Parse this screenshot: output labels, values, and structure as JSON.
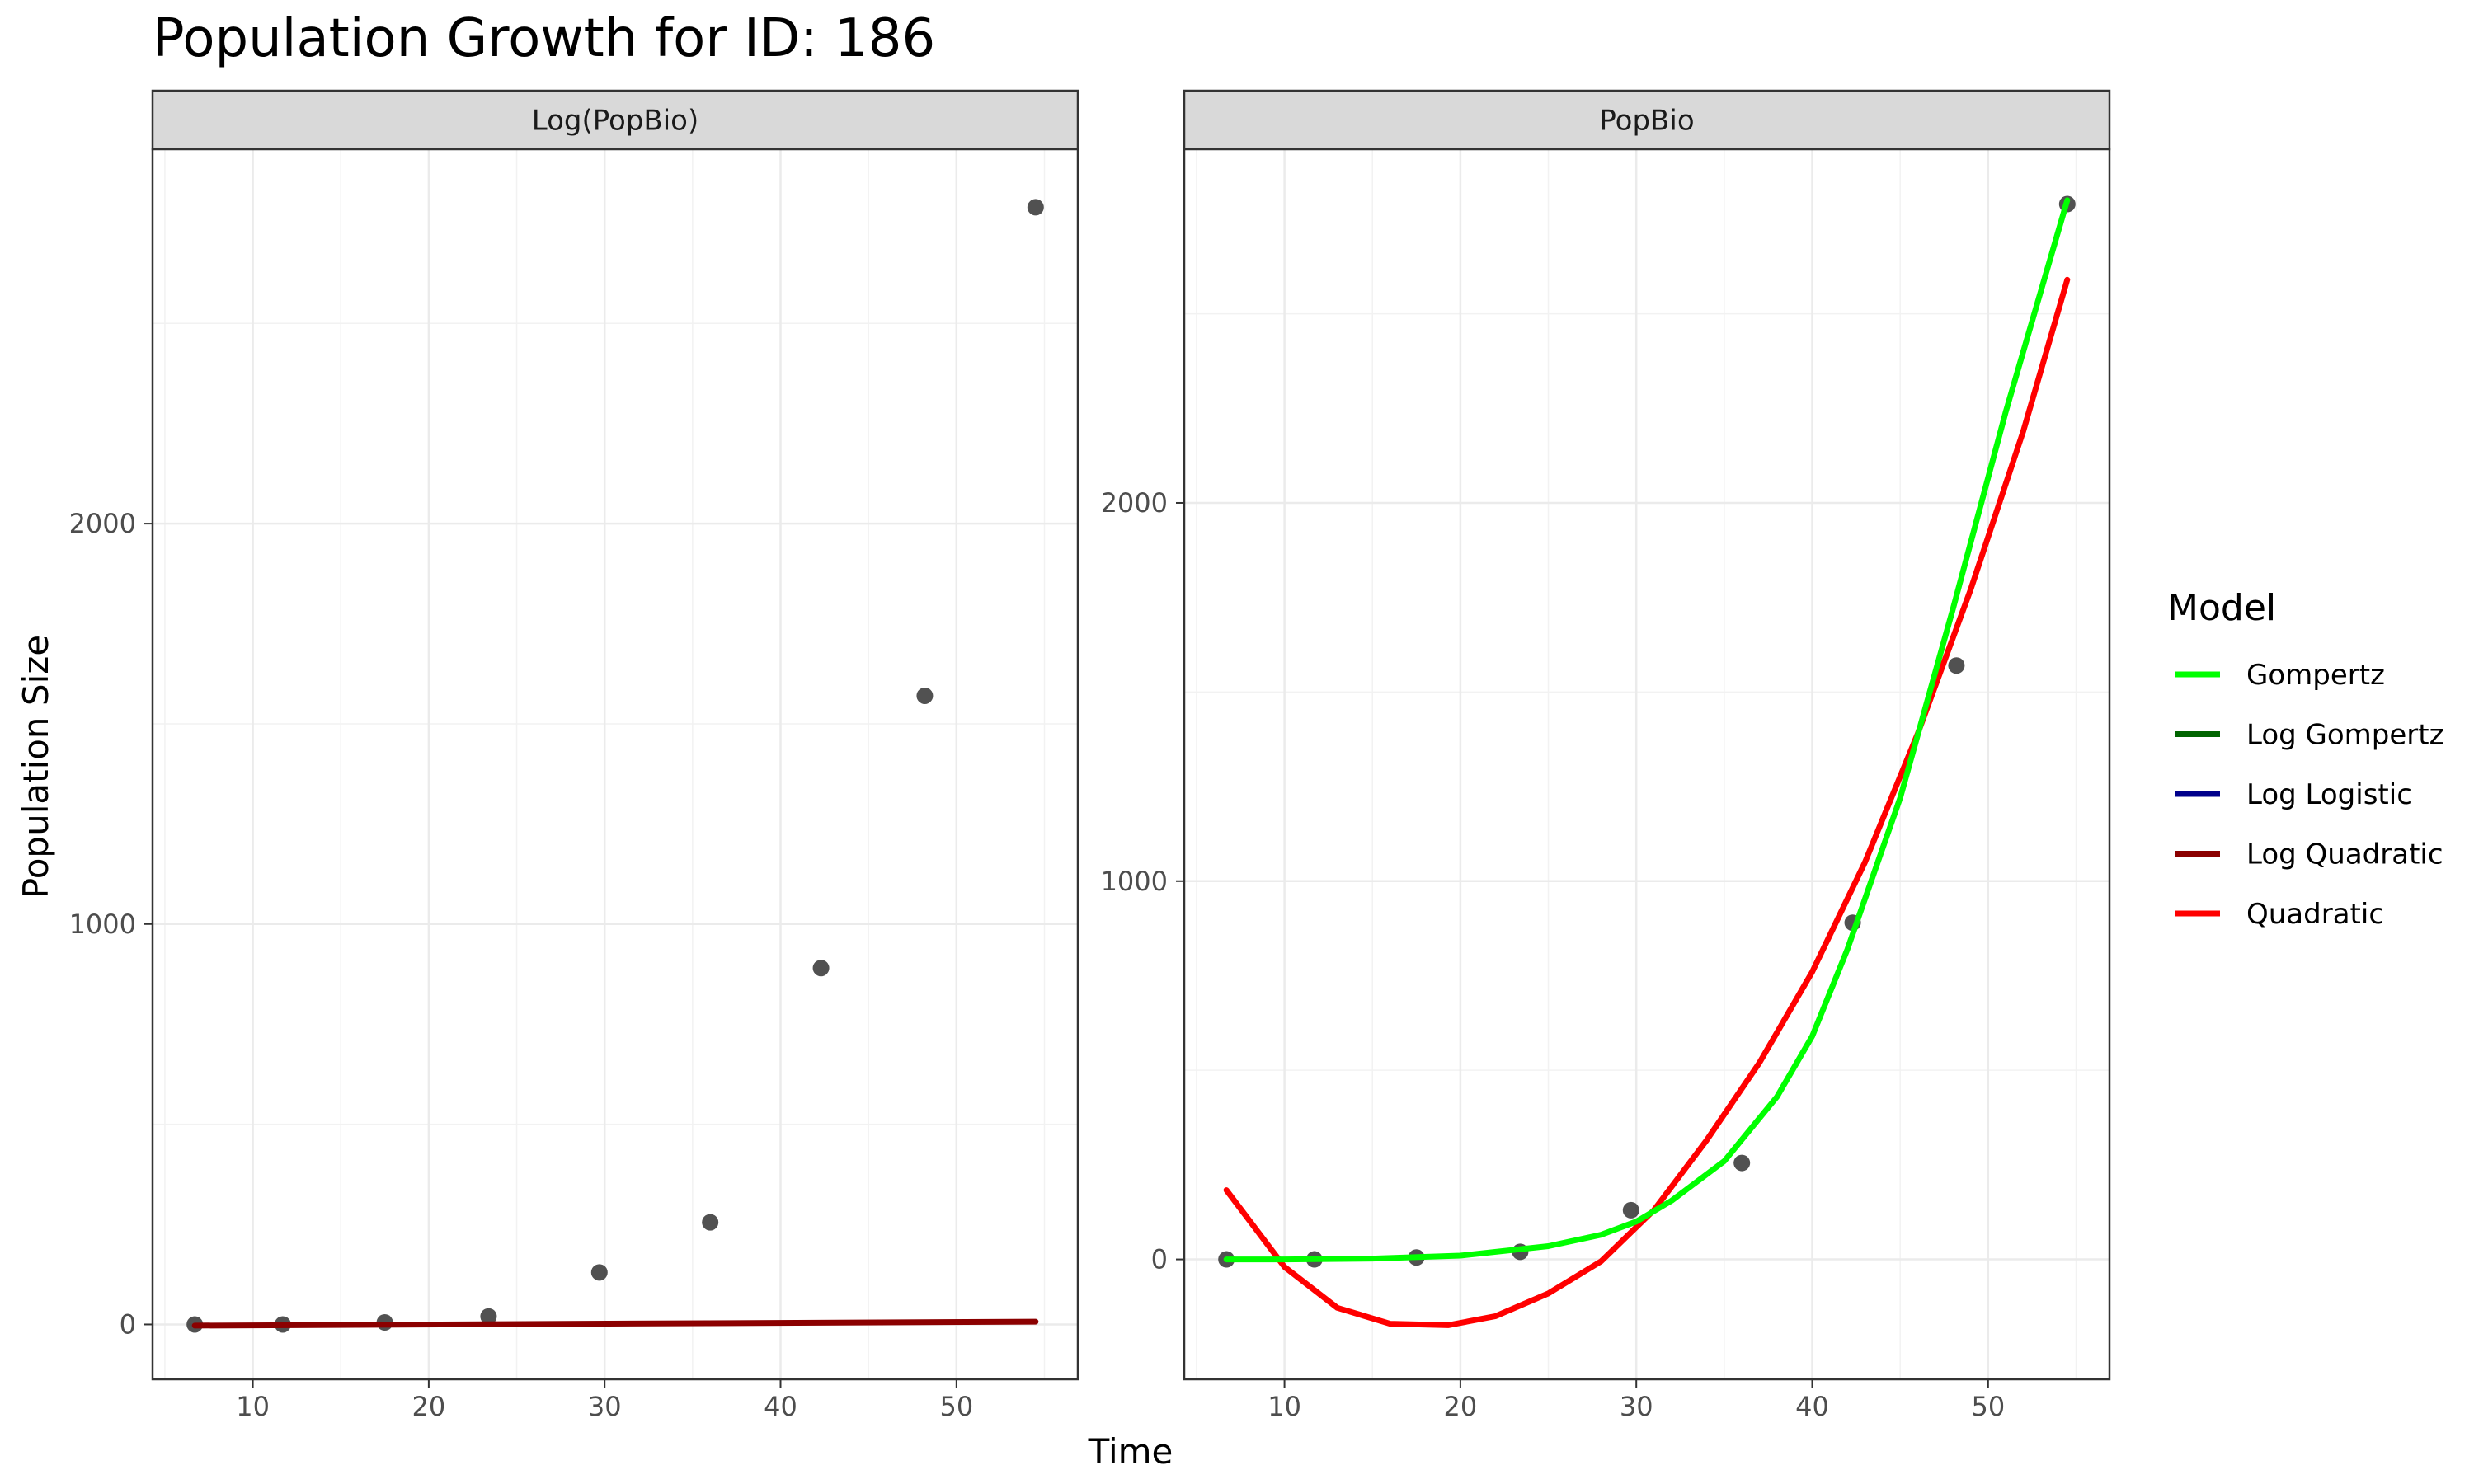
{
  "chart_data": {
    "type": "scatter",
    "title": "Population Growth for ID: 186",
    "xlabel": "Time",
    "ylabel": "Population Size",
    "grid": true,
    "legend_title": "Model",
    "legend_position": "right",
    "x_ticks": [
      10,
      20,
      30,
      40,
      50
    ],
    "points": {
      "x": [
        6.7,
        11.7,
        17.5,
        23.4,
        29.7,
        36.0,
        42.3,
        48.2,
        54.5
      ],
      "y": [
        0,
        0,
        5,
        20,
        130,
        255,
        890,
        1570,
        2790
      ]
    },
    "legend": [
      {
        "name": "Gompertz",
        "color": "#00ff00"
      },
      {
        "name": "Log Gompertz",
        "color": "#006400"
      },
      {
        "name": "Log Logistic",
        "color": "#00008b"
      },
      {
        "name": "Log Quadratic",
        "color": "#8b0000"
      },
      {
        "name": "Quadratic",
        "color": "#ff0000"
      }
    ],
    "panels": [
      {
        "strip": "Log(PopBio)",
        "xlim": [
          4.3,
          56.9
        ],
        "ylim": [
          -137,
          2935
        ],
        "y_ticks": [
          0,
          1000,
          2000
        ],
        "series": [
          {
            "name": "Log Quadratic",
            "color": "#8b0000",
            "x": [
              6.7,
              54.5
            ],
            "y": [
              -3,
              7
            ]
          }
        ]
      },
      {
        "strip": "PopBio",
        "xlim": [
          4.3,
          56.9
        ],
        "ylim": [
          -317,
          2935
        ],
        "y_ticks": [
          0,
          1000,
          2000
        ],
        "series": [
          {
            "name": "Quadratic",
            "color": "#ff0000",
            "x": [
              6.7,
              10,
              13,
              16,
              19.3,
              22,
              25,
              28,
              31,
              34,
              37,
              40,
              43,
              46,
              49,
              52,
              54.5
            ],
            "y": [
              183,
              -20,
              -128,
              -170,
              -174,
              -150,
              -90,
              -5,
              130,
              315,
              520,
              760,
              1050,
              1390,
              1770,
              2190,
              2590
            ]
          },
          {
            "name": "Gompertz",
            "color": "#00ff00",
            "x": [
              6.7,
              10,
              15,
              20,
              25,
              28,
              30,
              32,
              35,
              38,
              40,
              42,
              45,
              48,
              51,
              54.5
            ],
            "y": [
              0,
              0,
              2,
              10,
              35,
              65,
              100,
              155,
              260,
              430,
              590,
              820,
              1220,
              1720,
              2240,
              2800
            ]
          }
        ]
      }
    ]
  }
}
